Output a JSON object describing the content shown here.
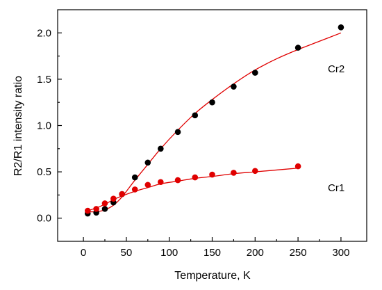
{
  "chart_data": {
    "type": "scatter",
    "title": "",
    "xlabel": "Temperature, K",
    "ylabel": "R2/R1 intensity ratio",
    "xlim": [
      -30,
      330
    ],
    "ylim": [
      -0.25,
      2.25
    ],
    "xticks": [
      0,
      50,
      100,
      150,
      200,
      250,
      300
    ],
    "yticks": [
      0.0,
      0.5,
      1.0,
      1.5,
      2.0
    ],
    "grid": false,
    "legend": "none",
    "series": [
      {
        "name": "Cr2",
        "color": "#000000",
        "fit_color": "#e00000",
        "x": [
          5,
          15,
          25,
          35,
          45,
          60,
          75,
          90,
          110,
          130,
          150,
          175,
          200,
          250,
          300
        ],
        "y": [
          0.05,
          0.06,
          0.1,
          0.17,
          0.26,
          0.44,
          0.6,
          0.75,
          0.93,
          1.11,
          1.25,
          1.42,
          1.57,
          1.84,
          2.06
        ],
        "fit_x": [
          5,
          15,
          25,
          35,
          45,
          60,
          75,
          90,
          110,
          130,
          150,
          175,
          200,
          225,
          250,
          275,
          300
        ],
        "fit_y": [
          0.07,
          0.07,
          0.09,
          0.14,
          0.23,
          0.41,
          0.58,
          0.75,
          0.95,
          1.13,
          1.28,
          1.45,
          1.6,
          1.72,
          1.82,
          1.91,
          2.0
        ]
      },
      {
        "name": "Cr1",
        "color": "#e00000",
        "fit_color": "#e00000",
        "x": [
          5,
          15,
          25,
          35,
          45,
          60,
          75,
          90,
          110,
          130,
          150,
          175,
          200,
          250
        ],
        "y": [
          0.08,
          0.1,
          0.16,
          0.21,
          0.26,
          0.31,
          0.36,
          0.39,
          0.41,
          0.44,
          0.47,
          0.49,
          0.51,
          0.56
        ],
        "fit_x": [
          5,
          15,
          25,
          35,
          45,
          60,
          75,
          90,
          110,
          130,
          150,
          175,
          200,
          225,
          250
        ],
        "fit_y": [
          0.08,
          0.11,
          0.15,
          0.2,
          0.24,
          0.29,
          0.33,
          0.37,
          0.4,
          0.43,
          0.45,
          0.48,
          0.5,
          0.52,
          0.54
        ]
      }
    ]
  }
}
